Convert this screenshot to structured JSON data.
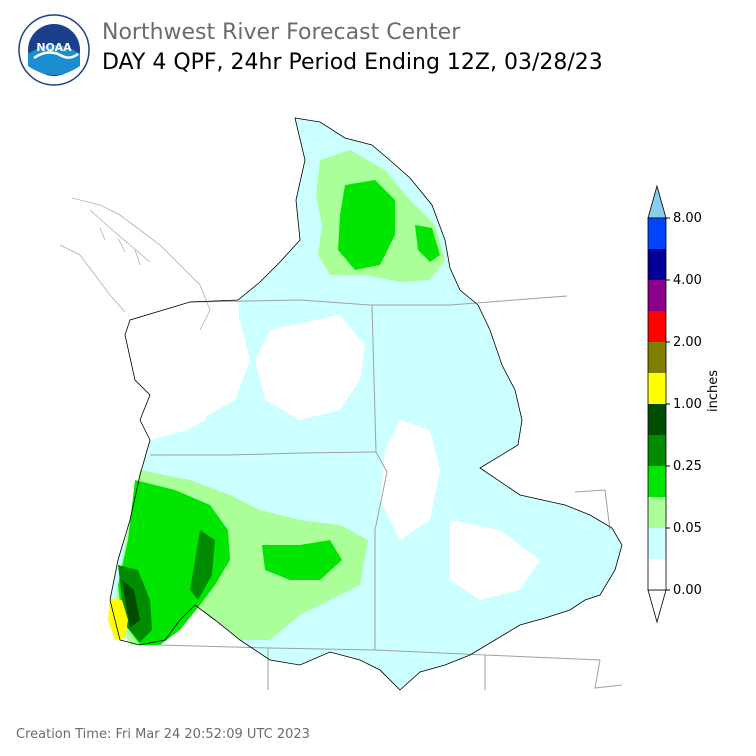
{
  "header": {
    "agency": "Northwest River Forecast Center",
    "product": "DAY 4 QPF, 24hr Period Ending 12Z, 03/28/23"
  },
  "logo": {
    "text": "NOAA",
    "icon": "noaa-logo-icon"
  },
  "colorbar": {
    "units": "inches",
    "ticks": [
      "0.00",
      "0.05",
      "0.25",
      "1.00",
      "2.00",
      "4.00",
      "8.00"
    ],
    "bins": [
      {
        "color": "#ffffff"
      },
      {
        "color": "#ccffff"
      },
      {
        "color": "#aaff99"
      },
      {
        "color": "#00e600"
      },
      {
        "color": "#008c00"
      },
      {
        "color": "#004d00"
      },
      {
        "color": "#ffff00"
      },
      {
        "color": "#808000"
      },
      {
        "color": "#ff0000"
      },
      {
        "color": "#8b008b"
      },
      {
        "color": "#000099"
      },
      {
        "color": "#0044ff"
      }
    ],
    "over_color": "#87ceeb",
    "under_color": "#ffffff"
  },
  "footer": {
    "creation_time": "Creation Time: Fri Mar 24 20:52:09 UTC 2023"
  }
}
